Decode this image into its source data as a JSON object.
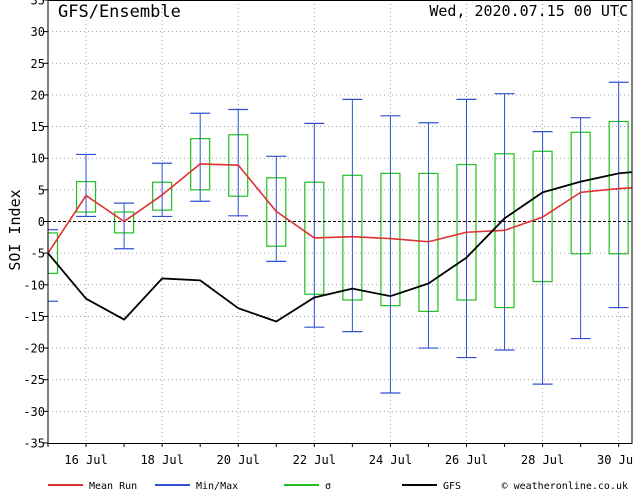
{
  "chart_data": {
    "type": "line",
    "title": "GFS/Ensemble",
    "date_label": "Wed, 2020.07.15   00 UTC",
    "ylabel": "SOI Index",
    "ylim": [
      -35,
      35
    ],
    "yticks": [
      -35,
      -30,
      -25,
      -20,
      -15,
      -10,
      -5,
      0,
      5,
      10,
      15,
      20,
      25,
      30,
      35
    ],
    "xlim": [
      15.0,
      30.35
    ],
    "xticks": [
      {
        "x": 16,
        "label": "16 Jul"
      },
      {
        "x": 18,
        "label": "18 Jul"
      },
      {
        "x": 20,
        "label": "20 Jul"
      },
      {
        "x": 22,
        "label": "22 Jul"
      },
      {
        "x": 24,
        "label": "24 Jul"
      },
      {
        "x": 26,
        "label": "26 Jul"
      },
      {
        "x": 28,
        "label": "28 Jul"
      },
      {
        "x": 30,
        "label": "30 Jul"
      }
    ],
    "grid": true,
    "zero_line": true,
    "x": [
      15.0,
      16.0,
      17.0,
      18.0,
      19.0,
      20.0,
      21.0,
      22.0,
      23.0,
      24.0,
      25.0,
      26.0,
      27.0,
      28.0,
      29.0,
      30.0,
      30.35
    ],
    "series": [
      {
        "name": "Mean Run",
        "color": "#e03030",
        "values": [
          -5.0,
          4.1,
          0.0,
          4.2,
          9.1,
          8.9,
          1.6,
          -2.6,
          -2.4,
          -2.7,
          -3.2,
          -1.7,
          -1.4,
          0.7,
          4.6,
          5.2,
          5.3
        ]
      },
      {
        "name": "GFS",
        "color": "#000000",
        "values": [
          -5.0,
          -12.2,
          -15.5,
          -9.0,
          -9.3,
          -13.7,
          -15.8,
          -12.0,
          -10.6,
          -11.8,
          -9.8,
          -5.7,
          0.5,
          4.6,
          6.3,
          7.6,
          7.8
        ]
      }
    ],
    "minmax": {
      "name": "Min/Max",
      "color": "#3050d0",
      "items": [
        {
          "x": 15.0,
          "min": -12.6,
          "max": -1.3
        },
        {
          "x": 16.0,
          "min": 0.8,
          "max": 10.6
        },
        {
          "x": 17.0,
          "min": -4.3,
          "max": 2.9
        },
        {
          "x": 18.0,
          "min": 0.8,
          "max": 9.2
        },
        {
          "x": 19.0,
          "min": 3.2,
          "max": 17.1
        },
        {
          "x": 20.0,
          "min": 0.9,
          "max": 17.7
        },
        {
          "x": 21.0,
          "min": -6.3,
          "max": 10.3
        },
        {
          "x": 22.0,
          "min": -16.7,
          "max": 15.5
        },
        {
          "x": 23.0,
          "min": -17.4,
          "max": 19.3
        },
        {
          "x": 24.0,
          "min": -27.1,
          "max": 16.7
        },
        {
          "x": 25.0,
          "min": -20.0,
          "max": 15.6
        },
        {
          "x": 26.0,
          "min": -21.5,
          "max": 19.3
        },
        {
          "x": 27.0,
          "min": -20.3,
          "max": 20.2
        },
        {
          "x": 28.0,
          "min": -25.7,
          "max": 14.2
        },
        {
          "x": 29.0,
          "min": -18.5,
          "max": 16.4
        },
        {
          "x": 30.0,
          "min": -13.6,
          "max": 22.0
        }
      ]
    },
    "sigma": {
      "name": "σ",
      "color": "#20c020",
      "items": [
        {
          "x": 15.0,
          "low": -8.2,
          "high": -1.8
        },
        {
          "x": 16.0,
          "low": 1.5,
          "high": 6.3
        },
        {
          "x": 17.0,
          "low": -1.8,
          "high": 1.5
        },
        {
          "x": 18.0,
          "low": 1.8,
          "high": 6.2
        },
        {
          "x": 19.0,
          "low": 5.0,
          "high": 13.1
        },
        {
          "x": 20.0,
          "low": 4.0,
          "high": 13.7
        },
        {
          "x": 21.0,
          "low": -3.9,
          "high": 6.9
        },
        {
          "x": 22.0,
          "low": -11.5,
          "high": 6.2
        },
        {
          "x": 23.0,
          "low": -12.4,
          "high": 7.3
        },
        {
          "x": 24.0,
          "low": -13.3,
          "high": 7.6
        },
        {
          "x": 25.0,
          "low": -14.2,
          "high": 7.6
        },
        {
          "x": 26.0,
          "low": -12.4,
          "high": 9.0
        },
        {
          "x": 27.0,
          "low": -13.6,
          "high": 10.7
        },
        {
          "x": 28.0,
          "low": -9.5,
          "high": 11.1
        },
        {
          "x": 29.0,
          "low": -5.1,
          "high": 14.1
        },
        {
          "x": 30.0,
          "low": -5.1,
          "high": 15.8
        }
      ]
    },
    "legend": {
      "placement": "bottom",
      "items": [
        {
          "label": "Mean Run",
          "color": "#e03030"
        },
        {
          "label": "Min/Max",
          "color": "#3050d0"
        },
        {
          "label": "σ",
          "color": "#20c020"
        },
        {
          "label": "GFS",
          "color": "#000000"
        }
      ]
    },
    "credit": "© weatheronline.co.uk"
  }
}
